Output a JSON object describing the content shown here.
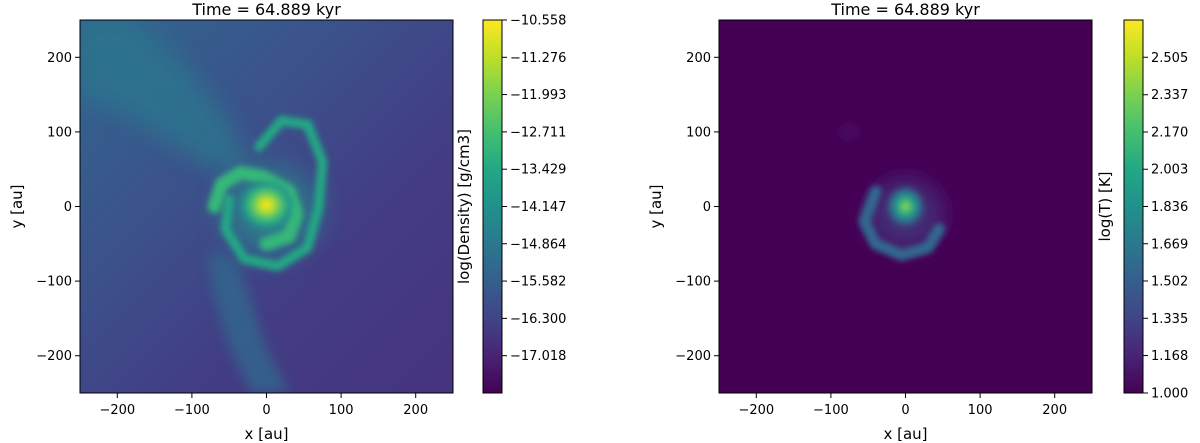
{
  "chart_data": [
    {
      "type": "heatmap",
      "title": "Time = 64.889 kyr",
      "xlabel": "x [au]",
      "ylabel": "y [au]",
      "xlim": [
        -250,
        250
      ],
      "ylim": [
        -250,
        250
      ],
      "xticks": [
        -200,
        -100,
        0,
        100,
        200
      ],
      "yticks": [
        -200,
        -100,
        0,
        100,
        200
      ],
      "xtick_labels": [
        "−200",
        "−100",
        "0",
        "100",
        "200"
      ],
      "ytick_labels": [
        "−200",
        "−100",
        "0",
        "100",
        "200"
      ],
      "colorbar": {
        "label": "log(Density) [g/cm3]",
        "min": -17.736,
        "max": -10.558,
        "ticks": [
          -10.558,
          -11.276,
          -11.993,
          -12.711,
          -13.429,
          -14.147,
          -14.864,
          -15.582,
          -16.3,
          -17.018
        ],
        "tick_labels": [
          "−10.558",
          "−11.276",
          "−11.993",
          "−12.711",
          "−13.429",
          "−14.147",
          "−14.864",
          "−15.582",
          "−16.300",
          "−17.018"
        ],
        "colormap": "viridis"
      }
    },
    {
      "type": "heatmap",
      "title": "Time = 64.889 kyr",
      "xlabel": "x [au]",
      "ylabel": "y [au]",
      "xlim": [
        -250,
        250
      ],
      "ylim": [
        -250,
        250
      ],
      "xticks": [
        -200,
        -100,
        0,
        100,
        200
      ],
      "yticks": [
        -200,
        -100,
        0,
        100,
        200
      ],
      "xtick_labels": [
        "−200",
        "−100",
        "0",
        "100",
        "200"
      ],
      "ytick_labels": [
        "−200",
        "−100",
        "0",
        "100",
        "200"
      ],
      "colorbar": {
        "label": "log(T) [K]",
        "min": 1.0,
        "max": 2.672,
        "ticks": [
          1.0,
          1.168,
          1.335,
          1.502,
          1.669,
          1.836,
          2.003,
          2.17,
          2.337,
          2.505
        ],
        "tick_labels": [
          "1.000",
          "1.168",
          "1.335",
          "1.502",
          "1.669",
          "1.836",
          "2.003",
          "2.170",
          "2.337",
          "2.505"
        ],
        "colormap": "viridis"
      }
    }
  ],
  "colors": {
    "viridis_low": "#440154",
    "viridis_q1": "#3b528b",
    "viridis_mid": "#21918c",
    "viridis_q3": "#5ec962",
    "viridis_high": "#fde725",
    "axis": "#000000",
    "background": "#ffffff"
  }
}
